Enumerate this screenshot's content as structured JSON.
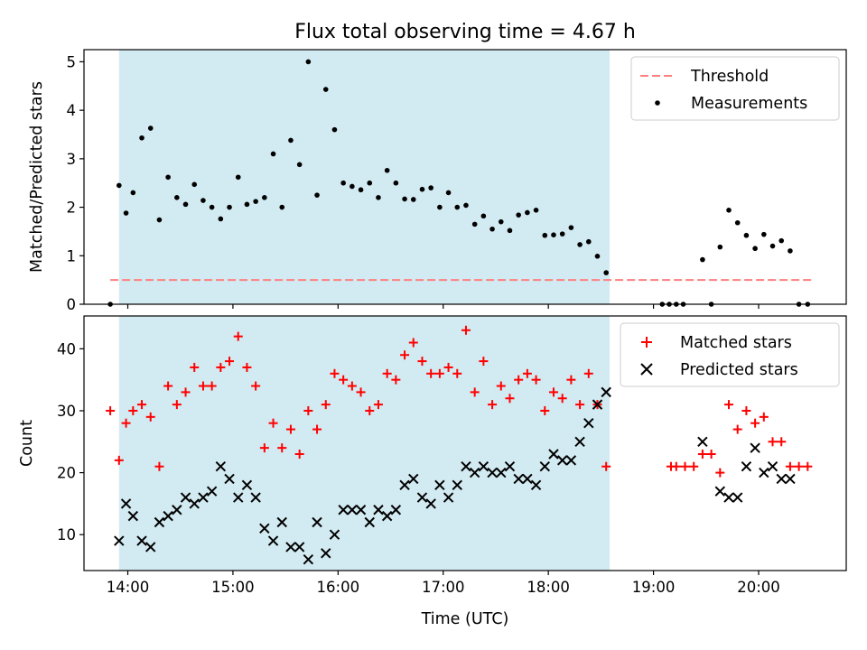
{
  "figure": {
    "title": "Flux total observing time = 4.67 h"
  },
  "colors": {
    "shade": "#add8e6",
    "threshold": "#ff7f7f",
    "measurement": "#000000",
    "matched": "#ff0000",
    "predicted": "#000000"
  },
  "chart_data": [
    {
      "type": "scatter",
      "title": "Flux total observing time = 4.67 h",
      "xlabel": "",
      "ylabel": "Matched/Predicted stars",
      "xlim": [
        "13:35",
        "20:50"
      ],
      "ylim": [
        0,
        5.25
      ],
      "yticks": [
        0,
        1,
        2,
        3,
        4,
        5
      ],
      "xticks": [
        "14:00",
        "15:00",
        "16:00",
        "17:00",
        "18:00",
        "19:00",
        "20:00"
      ],
      "shaded_span": [
        "13:55",
        "18:35"
      ],
      "threshold": {
        "name": "Threshold",
        "style": "dashed",
        "y": 0.5,
        "x_range": [
          "13:50",
          "20:30"
        ]
      },
      "legend": {
        "position": "top-right",
        "entries": [
          "Threshold",
          "Measurements"
        ]
      },
      "series": [
        {
          "name": "Measurements",
          "marker": "dot",
          "points": [
            [
              "13:50",
              0.0
            ],
            [
              "13:55",
              2.45
            ],
            [
              "13:59",
              1.88
            ],
            [
              "14:03",
              2.3
            ],
            [
              "14:08",
              3.43
            ],
            [
              "14:13",
              3.63
            ],
            [
              "14:18",
              1.74
            ],
            [
              "14:23",
              2.62
            ],
            [
              "14:28",
              2.2
            ],
            [
              "14:33",
              2.06
            ],
            [
              "14:38",
              2.47
            ],
            [
              "14:43",
              2.14
            ],
            [
              "14:48",
              2.0
            ],
            [
              "14:53",
              1.76
            ],
            [
              "14:58",
              2.0
            ],
            [
              "15:03",
              2.62
            ],
            [
              "15:08",
              2.06
            ],
            [
              "15:13",
              2.12
            ],
            [
              "15:18",
              2.2
            ],
            [
              "15:23",
              3.1
            ],
            [
              "15:28",
              2.0
            ],
            [
              "15:33",
              3.38
            ],
            [
              "15:38",
              2.88
            ],
            [
              "15:43",
              5.0
            ],
            [
              "15:48",
              2.25
            ],
            [
              "15:53",
              4.43
            ],
            [
              "15:58",
              3.6
            ],
            [
              "16:03",
              2.5
            ],
            [
              "16:08",
              2.43
            ],
            [
              "16:13",
              2.36
            ],
            [
              "16:18",
              2.5
            ],
            [
              "16:23",
              2.2
            ],
            [
              "16:28",
              2.76
            ],
            [
              "16:33",
              2.5
            ],
            [
              "16:38",
              2.17
            ],
            [
              "16:43",
              2.16
            ],
            [
              "16:48",
              2.37
            ],
            [
              "16:53",
              2.4
            ],
            [
              "16:58",
              2.0
            ],
            [
              "17:03",
              2.3
            ],
            [
              "17:08",
              2.0
            ],
            [
              "17:13",
              2.04
            ],
            [
              "17:18",
              1.65
            ],
            [
              "17:23",
              1.82
            ],
            [
              "17:28",
              1.55
            ],
            [
              "17:33",
              1.7
            ],
            [
              "17:38",
              1.52
            ],
            [
              "17:43",
              1.84
            ],
            [
              "17:48",
              1.89
            ],
            [
              "17:53",
              1.94
            ],
            [
              "17:58",
              1.42
            ],
            [
              "18:03",
              1.43
            ],
            [
              "18:08",
              1.45
            ],
            [
              "18:13",
              1.58
            ],
            [
              "18:18",
              1.23
            ],
            [
              "18:23",
              1.29
            ],
            [
              "18:28",
              0.99
            ],
            [
              "18:33",
              0.65
            ],
            [
              "19:05",
              0.0
            ],
            [
              "19:09",
              0.0
            ],
            [
              "19:13",
              0.0
            ],
            [
              "19:17",
              0.0
            ],
            [
              "19:28",
              0.92
            ],
            [
              "19:33",
              0.0
            ],
            [
              "19:38",
              1.18
            ],
            [
              "19:43",
              1.94
            ],
            [
              "19:48",
              1.68
            ],
            [
              "19:53",
              1.42
            ],
            [
              "19:58",
              1.15
            ],
            [
              "20:03",
              1.44
            ],
            [
              "20:08",
              1.2
            ],
            [
              "20:13",
              1.31
            ],
            [
              "20:18",
              1.1
            ],
            [
              "20:23",
              0.0
            ],
            [
              "20:28",
              0.0
            ]
          ]
        }
      ]
    },
    {
      "type": "scatter",
      "xlabel": "Time (UTC)",
      "ylabel": "Count",
      "xlim": [
        "13:35",
        "20:50"
      ],
      "ylim": [
        4.2,
        45.3
      ],
      "yticks": [
        10,
        20,
        30,
        40
      ],
      "xticks": [
        "14:00",
        "15:00",
        "16:00",
        "17:00",
        "18:00",
        "19:00",
        "20:00"
      ],
      "shaded_span": [
        "13:55",
        "18:35"
      ],
      "legend": {
        "position": "top-right",
        "entries": [
          "Matched stars",
          "Predicted stars"
        ]
      },
      "series": [
        {
          "name": "Matched stars",
          "marker": "plus",
          "points": [
            [
              "13:50",
              30
            ],
            [
              "13:55",
              22
            ],
            [
              "13:59",
              28
            ],
            [
              "14:03",
              30
            ],
            [
              "14:08",
              31
            ],
            [
              "14:13",
              29
            ],
            [
              "14:18",
              21
            ],
            [
              "14:23",
              34
            ],
            [
              "14:28",
              31
            ],
            [
              "14:33",
              33
            ],
            [
              "14:38",
              37
            ],
            [
              "14:43",
              34
            ],
            [
              "14:48",
              34
            ],
            [
              "14:53",
              37
            ],
            [
              "14:58",
              38
            ],
            [
              "15:03",
              42
            ],
            [
              "15:08",
              37
            ],
            [
              "15:13",
              34
            ],
            [
              "15:18",
              24
            ],
            [
              "15:23",
              28
            ],
            [
              "15:28",
              24
            ],
            [
              "15:33",
              27
            ],
            [
              "15:38",
              23
            ],
            [
              "15:43",
              30
            ],
            [
              "15:48",
              27
            ],
            [
              "15:53",
              31
            ],
            [
              "15:58",
              36
            ],
            [
              "16:03",
              35
            ],
            [
              "16:08",
              34
            ],
            [
              "16:13",
              33
            ],
            [
              "16:18",
              30
            ],
            [
              "16:23",
              31
            ],
            [
              "16:28",
              36
            ],
            [
              "16:33",
              35
            ],
            [
              "16:38",
              39
            ],
            [
              "16:43",
              41
            ],
            [
              "16:48",
              38
            ],
            [
              "16:53",
              36
            ],
            [
              "16:58",
              36
            ],
            [
              "17:03",
              37
            ],
            [
              "17:08",
              36
            ],
            [
              "17:13",
              43
            ],
            [
              "17:18",
              33
            ],
            [
              "17:23",
              38
            ],
            [
              "17:28",
              31
            ],
            [
              "17:33",
              34
            ],
            [
              "17:38",
              32
            ],
            [
              "17:43",
              35
            ],
            [
              "17:48",
              36
            ],
            [
              "17:53",
              35
            ],
            [
              "17:58",
              30
            ],
            [
              "18:03",
              33
            ],
            [
              "18:08",
              32
            ],
            [
              "18:13",
              35
            ],
            [
              "18:18",
              31
            ],
            [
              "18:23",
              36
            ],
            [
              "18:28",
              31
            ],
            [
              "18:33",
              21
            ],
            [
              "19:10",
              21
            ],
            [
              "19:13",
              21
            ],
            [
              "19:18",
              21
            ],
            [
              "19:23",
              21
            ],
            [
              "19:28",
              23
            ],
            [
              "19:33",
              23
            ],
            [
              "19:38",
              20
            ],
            [
              "19:43",
              31
            ],
            [
              "19:48",
              27
            ],
            [
              "19:53",
              30
            ],
            [
              "19:58",
              28
            ],
            [
              "20:03",
              29
            ],
            [
              "20:08",
              25
            ],
            [
              "20:13",
              25
            ],
            [
              "20:18",
              21
            ],
            [
              "20:23",
              21
            ],
            [
              "20:28",
              21
            ]
          ]
        },
        {
          "name": "Predicted stars",
          "marker": "x",
          "points": [
            [
              "13:55",
              9
            ],
            [
              "13:59",
              15
            ],
            [
              "14:03",
              13
            ],
            [
              "14:08",
              9
            ],
            [
              "14:13",
              8
            ],
            [
              "14:18",
              12
            ],
            [
              "14:23",
              13
            ],
            [
              "14:28",
              14
            ],
            [
              "14:33",
              16
            ],
            [
              "14:38",
              15
            ],
            [
              "14:43",
              16
            ],
            [
              "14:48",
              17
            ],
            [
              "14:53",
              21
            ],
            [
              "14:58",
              19
            ],
            [
              "15:03",
              16
            ],
            [
              "15:08",
              18
            ],
            [
              "15:13",
              16
            ],
            [
              "15:18",
              11
            ],
            [
              "15:23",
              9
            ],
            [
              "15:28",
              12
            ],
            [
              "15:33",
              8
            ],
            [
              "15:38",
              8
            ],
            [
              "15:43",
              6
            ],
            [
              "15:48",
              12
            ],
            [
              "15:53",
              7
            ],
            [
              "15:58",
              10
            ],
            [
              "16:03",
              14
            ],
            [
              "16:08",
              14
            ],
            [
              "16:13",
              14
            ],
            [
              "16:18",
              12
            ],
            [
              "16:23",
              14
            ],
            [
              "16:28",
              13
            ],
            [
              "16:33",
              14
            ],
            [
              "16:38",
              18
            ],
            [
              "16:43",
              19
            ],
            [
              "16:48",
              16
            ],
            [
              "16:53",
              15
            ],
            [
              "16:58",
              18
            ],
            [
              "17:03",
              16
            ],
            [
              "17:08",
              18
            ],
            [
              "17:13",
              21
            ],
            [
              "17:18",
              20
            ],
            [
              "17:23",
              21
            ],
            [
              "17:28",
              20
            ],
            [
              "17:33",
              20
            ],
            [
              "17:38",
              21
            ],
            [
              "17:43",
              19
            ],
            [
              "17:48",
              19
            ],
            [
              "17:53",
              18
            ],
            [
              "17:58",
              21
            ],
            [
              "18:03",
              23
            ],
            [
              "18:08",
              22
            ],
            [
              "18:13",
              22
            ],
            [
              "18:18",
              25
            ],
            [
              "18:23",
              28
            ],
            [
              "18:28",
              31
            ],
            [
              "18:33",
              33
            ],
            [
              "19:28",
              25
            ],
            [
              "19:38",
              17
            ],
            [
              "19:43",
              16
            ],
            [
              "19:48",
              16
            ],
            [
              "19:53",
              21
            ],
            [
              "19:58",
              24
            ],
            [
              "20:03",
              20
            ],
            [
              "20:08",
              21
            ],
            [
              "20:13",
              19
            ],
            [
              "20:18",
              19
            ]
          ]
        }
      ]
    }
  ]
}
